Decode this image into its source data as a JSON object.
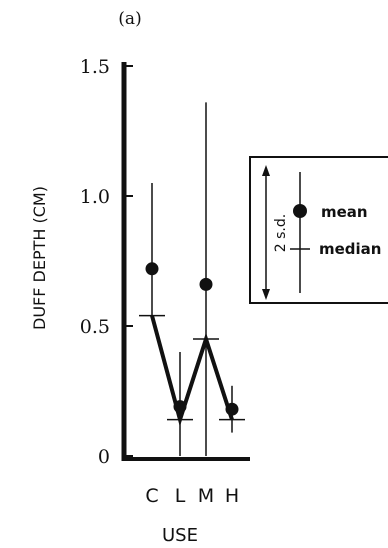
{
  "chart_data": {
    "type": "scatter",
    "panel_label": "(a)",
    "xlabel": "USE",
    "ylabel": "DUFF DEPTH (CM)",
    "categories": [
      "C",
      "L",
      "M",
      "H"
    ],
    "ylim": [
      0,
      1.5
    ],
    "yticks": [
      0,
      0.5,
      1.0,
      1.5
    ],
    "ytick_labels": [
      "0",
      "0.5",
      "1.0",
      "1.5"
    ],
    "grid": false,
    "legend_position": "right",
    "series": [
      {
        "name": "mean",
        "marker": "filled-circle",
        "values": [
          0.72,
          0.19,
          0.66,
          0.18
        ]
      },
      {
        "name": "median",
        "marker": "tick",
        "connected": true,
        "values": [
          0.54,
          0.14,
          0.45,
          0.14
        ]
      }
    ],
    "error_bars": {
      "label": "2 s.d.",
      "lower": [
        0.54,
        0.0,
        0.0,
        0.09
      ],
      "upper": [
        1.05,
        0.4,
        1.36,
        0.27
      ]
    }
  },
  "legend": {
    "sd_label": "2 s.d.",
    "mean_label": "mean",
    "median_label": "median"
  },
  "colors": {
    "ink": "#111111",
    "background": "#ffffff"
  }
}
